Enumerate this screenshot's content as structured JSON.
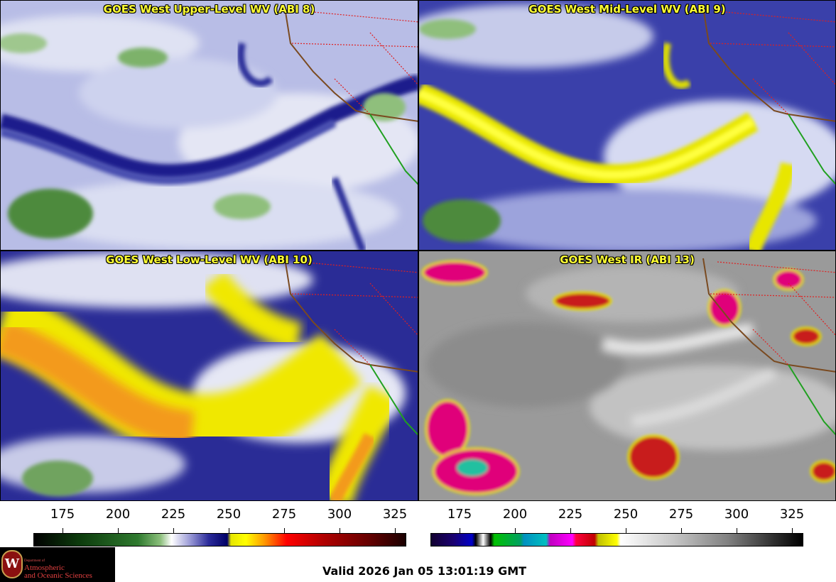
{
  "panels": [
    {
      "title": "GOES West Upper-Level WV (ABI 8)",
      "colors": [
        "#d8dcf0",
        "#9ea6dc",
        "#1a1c8c",
        "#4e8a3e"
      ]
    },
    {
      "title": "GOES West Mid-Level WV (ABI 9)",
      "colors": [
        "#c8cdea",
        "#3238a8",
        "#e8e600",
        "#4e8a3e"
      ]
    },
    {
      "title": "GOES West Low-Level WV (ABI 10)",
      "colors": [
        "#e0e2f2",
        "#2a2c96",
        "#f0e800",
        "#f39a1a"
      ]
    },
    {
      "title": "GOES West IR (ABI 13)",
      "colors": [
        "#9a9a9a",
        "#e6e6e6",
        "#e0007a",
        "#c81e1e",
        "#e8e000",
        "#20c0a0"
      ]
    }
  ],
  "colorbars": [
    {
      "ticks": [
        "175",
        "200",
        "225",
        "250",
        "275",
        "300",
        "325"
      ]
    },
    {
      "ticks": [
        "175",
        "200",
        "225",
        "250",
        "275",
        "300",
        "325"
      ]
    }
  ],
  "logo": {
    "dept": "Department of",
    "line1": "Atmospheric",
    "line2": "and Oceanic Sciences",
    "seal_letter": "W"
  },
  "valid_time": "Valid 2026 Jan 05 13:01:19 GMT"
}
